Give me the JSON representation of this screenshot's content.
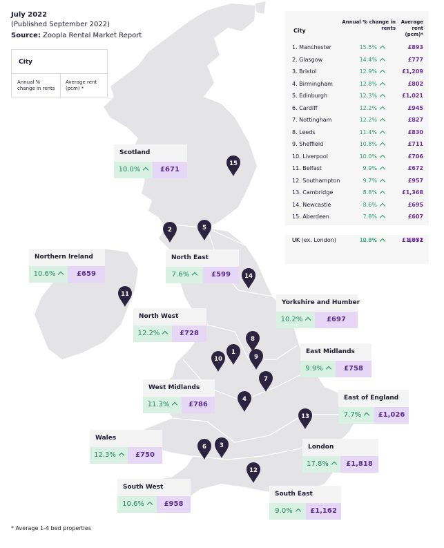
{
  "header": {
    "title": "July 2022",
    "published": "(Published September 2022)",
    "source_label": "Source:",
    "source_text": " Zoopla Rental Market Report"
  },
  "legend": {
    "city": "City",
    "change": "Annual % change in rents",
    "rent": "Average rent (pcm) *"
  },
  "table": {
    "col_city": "City",
    "col_change": "Annual % change in rents",
    "col_rent": "Average rent (pcm)*",
    "rows": [
      {
        "name": "1.  Manchester",
        "change": "15.5%",
        "rent": "£893"
      },
      {
        "name": "2.  Glasgow",
        "change": "14.4%",
        "rent": "£777"
      },
      {
        "name": "3.  Bristol",
        "change": "12.9%",
        "rent": "£1,209"
      },
      {
        "name": "4.  Birmingham",
        "change": "12.8%",
        "rent": "£802"
      },
      {
        "name": "5.  Edinburgh",
        "change": "12.3%",
        "rent": "£1,021"
      },
      {
        "name": "6.  Cardiff",
        "change": "12.2%",
        "rent": "£945"
      },
      {
        "name": "7.  Nottingham",
        "change": "12.2%",
        "rent": "£827"
      },
      {
        "name": "8.  Leeds",
        "change": "11.4%",
        "rent": "£830"
      },
      {
        "name": "9.  Sheffield",
        "change": "10.8%",
        "rent": "£711"
      },
      {
        "name": "10. Liverpool",
        "change": "10.0%",
        "rent": "£706"
      },
      {
        "name": "11. Belfast",
        "change": "9.9%",
        "rent": "£672"
      },
      {
        "name": "12. Southampton",
        "change": "9.7%",
        "rent": "£957"
      },
      {
        "name": "13. Cambridge",
        "change": "8.8%",
        "rent": "£1,368"
      },
      {
        "name": "14. Newcastle",
        "change": "8.6%",
        "rent": "£695"
      },
      {
        "name": "15. Aberdeen",
        "change": "7.8%",
        "rent": "£607"
      }
    ],
    "summary": [
      {
        "name": "UK (ex. London)",
        "change": "10.0%",
        "rent": "£872"
      },
      {
        "name": "UK",
        "change": "12.3%",
        "rent": "£1,051"
      }
    ]
  },
  "regions": {
    "scotland": {
      "name": "Scotland",
      "change": "10.0%",
      "rent": "£671"
    },
    "northern_ireland": {
      "name": "Northern Ireland",
      "change": "10.6%",
      "rent": "£659"
    },
    "north_east": {
      "name": "North East",
      "change": "7.6%",
      "rent": "£599"
    },
    "north_west": {
      "name": "North West",
      "change": "12.2%",
      "rent": "£728"
    },
    "yorkshire": {
      "name": "Yorkshire and Humber",
      "change": "10.2%",
      "rent": "£697"
    },
    "east_midlands": {
      "name": "East Midlands",
      "change": "9.9%",
      "rent": "£758"
    },
    "west_midlands": {
      "name": "West Midlands",
      "change": "11.3%",
      "rent": "£786"
    },
    "east_england": {
      "name": "East of England",
      "change": "7.7%",
      "rent": "£1,026"
    },
    "wales": {
      "name": "Wales",
      "change": "12.3%",
      "rent": "£750"
    },
    "london": {
      "name": "London",
      "change": "17.8%",
      "rent": "£1,818"
    },
    "south_west": {
      "name": "South West",
      "change": "10.6%",
      "rent": "£958"
    },
    "south_east": {
      "name": "South East",
      "change": "9.0%",
      "rent": "£1,162"
    }
  },
  "pins": [
    "1",
    "2",
    "3",
    "4",
    "5",
    "6",
    "7",
    "8",
    "9",
    "10",
    "11",
    "12",
    "13",
    "14",
    "15"
  ],
  "footnote": "* Average 1-4 bed properties",
  "colors": {
    "map_fill": "#e4e4e6",
    "pin": "#2b2440",
    "change_green": "#28a26c",
    "rent_purple": "#6a2c9a",
    "change_bg": "#d8f1e2",
    "rent_bg": "#e6d7f6"
  }
}
